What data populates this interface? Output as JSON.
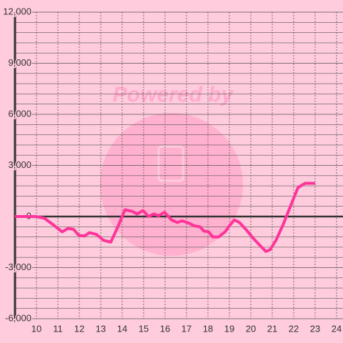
{
  "chart_data": {
    "type": "line",
    "watermark": "Powered by",
    "x": [
      9,
      9.97,
      10.37,
      10.8,
      11.2,
      11.47,
      11.73,
      11.97,
      12.23,
      12.47,
      12.8,
      13.13,
      13.47,
      13.8,
      14.13,
      14.47,
      14.7,
      14.97,
      15.23,
      15.47,
      15.7,
      15.97,
      16.3,
      16.57,
      16.8,
      17.13,
      17.37,
      17.63,
      17.8,
      18.03,
      18.23,
      18.5,
      18.8,
      19.03,
      19.23,
      19.47,
      19.8,
      20.13,
      20.47,
      20.7,
      20.9,
      21.17,
      21.5,
      21.8,
      22.2,
      22.53,
      23.0
    ],
    "series": [
      {
        "color": "#ff3399",
        "values": [
          0,
          0,
          -100,
          -500,
          -900,
          -700,
          -750,
          -1100,
          -1150,
          -950,
          -1050,
          -1400,
          -1500,
          -600,
          400,
          300,
          150,
          350,
          0,
          150,
          50,
          250,
          -200,
          -350,
          -250,
          -400,
          -550,
          -600,
          -850,
          -900,
          -1200,
          -1200,
          -900,
          -500,
          -200,
          -350,
          -800,
          -1300,
          -1750,
          -2050,
          -1950,
          -1400,
          -500,
          450,
          1700,
          1950,
          1950
        ]
      }
    ],
    "xlim": [
      9,
      24.3
    ],
    "xticks": [
      10,
      11,
      12,
      13,
      14,
      15,
      16,
      17,
      18,
      19,
      20,
      21,
      22,
      23,
      24
    ],
    "ylim": [
      -6000,
      12000
    ],
    "yticks": [
      {
        "value": -6000,
        "label": "-6,000"
      },
      {
        "value": -3000,
        "label": "-3,000"
      },
      0,
      {
        "value": 3000,
        "label": "3,000"
      },
      {
        "value": 6000,
        "label": "6,000"
      },
      {
        "value": 9000,
        "label": "9,000"
      },
      {
        "value": 12000,
        "label": "12,000"
      }
    ],
    "yminorticks": [
      -5400,
      -4800,
      -4200,
      -3600,
      -2400,
      -1800,
      -1200,
      -600,
      600,
      1200,
      1800,
      2400,
      3600,
      4200,
      4800,
      5400,
      6600,
      7200,
      7800,
      8400,
      9600,
      10200,
      10800,
      11400
    ],
    "grid": true
  }
}
